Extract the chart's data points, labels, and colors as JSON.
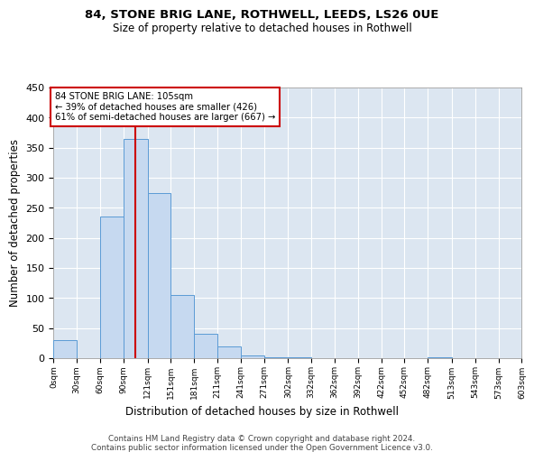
{
  "title1": "84, STONE BRIG LANE, ROTHWELL, LEEDS, LS26 0UE",
  "title2": "Size of property relative to detached houses in Rothwell",
  "xlabel": "Distribution of detached houses by size in Rothwell",
  "ylabel": "Number of detached properties",
  "footer1": "Contains HM Land Registry data © Crown copyright and database right 2024.",
  "footer2": "Contains public sector information licensed under the Open Government Licence v3.0.",
  "annotation_line1": "84 STONE BRIG LANE: 105sqm",
  "annotation_line2": "← 39% of detached houses are smaller (426)",
  "annotation_line3": "61% of semi-detached houses are larger (667) →",
  "property_size": 105,
  "bar_edges": [
    0,
    30,
    60,
    90,
    121,
    151,
    181,
    211,
    241,
    271,
    302,
    332,
    362,
    392,
    422,
    452,
    482,
    513,
    543,
    573,
    603
  ],
  "bar_heights": [
    30,
    0,
    235,
    365,
    275,
    105,
    40,
    20,
    5,
    2,
    1,
    0,
    0,
    0,
    0,
    0,
    1,
    0,
    0,
    0,
    0
  ],
  "bar_color": "#c6d9f0",
  "bar_edge_color": "#5b9bd5",
  "vline_color": "#cc0000",
  "vline_x": 105,
  "annotation_box_color": "#cc0000",
  "background_color": "#dce6f1",
  "ylim": [
    0,
    450
  ],
  "yticks": [
    0,
    50,
    100,
    150,
    200,
    250,
    300,
    350,
    400,
    450
  ],
  "tick_labels": [
    "0sqm",
    "30sqm",
    "60sqm",
    "90sqm",
    "121sqm",
    "151sqm",
    "181sqm",
    "211sqm",
    "241sqm",
    "271sqm",
    "302sqm",
    "332sqm",
    "362sqm",
    "392sqm",
    "422sqm",
    "452sqm",
    "482sqm",
    "513sqm",
    "543sqm",
    "573sqm",
    "603sqm"
  ],
  "xlim_max": 603
}
